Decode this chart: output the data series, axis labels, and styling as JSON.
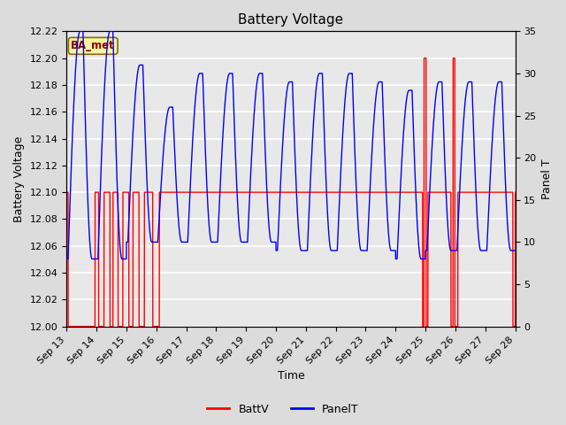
{
  "title": "Battery Voltage",
  "xlabel": "Time",
  "ylabel_left": "Battery Voltage",
  "ylabel_right": "Panel T",
  "x_tick_labels": [
    "Sep 13",
    "Sep 14",
    "Sep 15",
    "Sep 16",
    "Sep 17",
    "Sep 18",
    "Sep 19",
    "Sep 20",
    "Sep 21",
    "Sep 22",
    "Sep 23",
    "Sep 24",
    "Sep 25",
    "Sep 26",
    "Sep 27",
    "Sep 28"
  ],
  "ylim_left": [
    12.0,
    12.22
  ],
  "ylim_right": [
    0,
    35
  ],
  "yticks_left": [
    12.0,
    12.02,
    12.04,
    12.06,
    12.08,
    12.1,
    12.12,
    12.14,
    12.16,
    12.18,
    12.2,
    12.22
  ],
  "yticks_right": [
    0,
    5,
    10,
    15,
    20,
    25,
    30,
    35
  ],
  "background_color": "#dcdcdc",
  "plot_bg_color": "#e8e8e8",
  "grid_color": "#ffffff",
  "battv_color": "red",
  "panelt_color": "blue",
  "legend_battv": "BattV",
  "legend_panelt": "PanelT",
  "station_label": "BA_met",
  "title_fontsize": 11,
  "label_fontsize": 9,
  "tick_fontsize": 8
}
